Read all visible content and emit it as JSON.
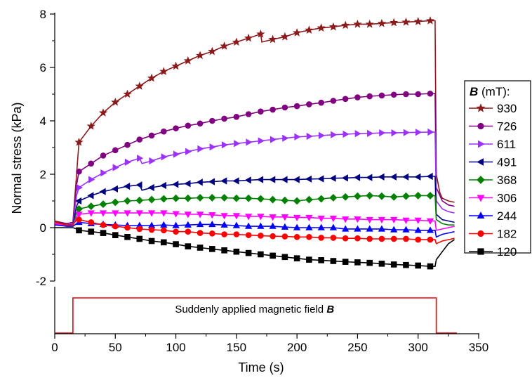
{
  "chart_data": {
    "type": "line",
    "xlabel": "Time (s)",
    "ylabel": "Normal stress (kPa)",
    "xlim": [
      0,
      350
    ],
    "ylim": [
      -2,
      8
    ],
    "xticks": [
      "0",
      "50",
      "100",
      "150",
      "200",
      "250",
      "300",
      "350"
    ],
    "yticks": [
      "-2",
      "0",
      "2",
      "4",
      "6",
      "8"
    ],
    "grid": false,
    "legend": {
      "title_symbol": "B",
      "title_unit": " (mT):",
      "placement": "right"
    },
    "annotation": {
      "text_plain": "Suddenly applied magnetic field ",
      "text_symbol": "B",
      "field_on": 15,
      "field_off": 315,
      "line_color": "#e8000b"
    },
    "series": [
      {
        "name": "930",
        "color": "#8b1a1a",
        "marker": "star",
        "x": [
          0,
          5,
          10,
          15,
          18,
          20,
          30,
          40,
          50,
          60,
          70,
          80,
          90,
          100,
          110,
          120,
          130,
          140,
          150,
          160,
          170,
          171,
          180,
          190,
          200,
          210,
          220,
          230,
          240,
          250,
          260,
          270,
          280,
          290,
          300,
          310,
          314,
          315,
          318,
          320,
          325,
          330
        ],
        "y": [
          0.25,
          0.2,
          0.15,
          0.2,
          2.0,
          3.2,
          3.8,
          4.3,
          4.7,
          5.0,
          5.3,
          5.6,
          5.85,
          6.05,
          6.25,
          6.45,
          6.6,
          6.8,
          6.95,
          7.1,
          7.25,
          6.95,
          7.05,
          7.15,
          7.3,
          7.4,
          7.48,
          7.52,
          7.58,
          7.62,
          7.62,
          7.65,
          7.68,
          7.7,
          7.72,
          7.75,
          7.75,
          2.0,
          1.3,
          1.1,
          1.0,
          0.95
        ]
      },
      {
        "name": "726",
        "color": "#800080",
        "marker": "circle",
        "x": [
          0,
          5,
          10,
          15,
          18,
          20,
          30,
          40,
          50,
          60,
          70,
          80,
          90,
          100,
          110,
          120,
          130,
          140,
          150,
          160,
          170,
          180,
          190,
          200,
          210,
          220,
          230,
          240,
          250,
          260,
          270,
          280,
          290,
          300,
          310,
          314,
          315,
          320,
          325,
          330
        ],
        "y": [
          0.2,
          0.18,
          0.15,
          0.2,
          1.6,
          2.1,
          2.4,
          2.7,
          2.9,
          3.1,
          3.3,
          3.45,
          3.6,
          3.72,
          3.82,
          3.9,
          4.0,
          4.08,
          4.15,
          4.25,
          4.35,
          4.42,
          4.5,
          4.55,
          4.62,
          4.68,
          4.75,
          4.82,
          4.88,
          4.92,
          4.95,
          4.98,
          5.0,
          5.0,
          5.02,
          5.02,
          1.5,
          1.0,
          0.85,
          0.8
        ]
      },
      {
        "name": "611",
        "color": "#9b30ff",
        "marker": "tri-right",
        "x": [
          0,
          5,
          10,
          15,
          18,
          20,
          30,
          40,
          50,
          60,
          70,
          72,
          80,
          90,
          100,
          110,
          120,
          130,
          140,
          150,
          160,
          170,
          180,
          190,
          200,
          210,
          220,
          230,
          240,
          250,
          260,
          270,
          280,
          290,
          300,
          310,
          314,
          315,
          320,
          325,
          330
        ],
        "y": [
          0.2,
          0.15,
          0.1,
          0.15,
          1.2,
          1.5,
          1.8,
          2.05,
          2.25,
          2.45,
          2.6,
          2.4,
          2.5,
          2.65,
          2.75,
          2.85,
          2.95,
          3.02,
          3.1,
          3.15,
          3.2,
          3.25,
          3.3,
          3.35,
          3.4,
          3.42,
          3.45,
          3.48,
          3.5,
          3.52,
          3.53,
          3.55,
          3.55,
          3.56,
          3.57,
          3.58,
          3.58,
          1.0,
          0.7,
          0.6,
          0.55
        ]
      },
      {
        "name": "491",
        "color": "#000080",
        "marker": "tri-left",
        "x": [
          0,
          5,
          10,
          15,
          18,
          20,
          30,
          40,
          50,
          60,
          70,
          72,
          80,
          90,
          100,
          110,
          120,
          130,
          140,
          150,
          160,
          170,
          180,
          190,
          200,
          210,
          220,
          230,
          240,
          250,
          260,
          270,
          280,
          290,
          300,
          310,
          314,
          315,
          320,
          325,
          330
        ],
        "y": [
          0.2,
          0.15,
          0.1,
          0.1,
          0.8,
          1.0,
          1.2,
          1.35,
          1.45,
          1.55,
          1.6,
          1.4,
          1.5,
          1.58,
          1.62,
          1.65,
          1.7,
          1.72,
          1.75,
          1.75,
          1.78,
          1.8,
          1.8,
          1.8,
          1.8,
          1.82,
          1.83,
          1.85,
          1.86,
          1.88,
          1.88,
          1.9,
          1.9,
          1.9,
          1.9,
          1.92,
          1.92,
          0.5,
          0.3,
          0.25,
          0.2
        ]
      },
      {
        "name": "368",
        "color": "#008000",
        "marker": "diamond",
        "x": [
          0,
          5,
          10,
          15,
          18,
          20,
          30,
          40,
          50,
          60,
          70,
          80,
          90,
          100,
          110,
          120,
          130,
          140,
          150,
          160,
          170,
          180,
          190,
          200,
          210,
          220,
          230,
          240,
          250,
          260,
          270,
          280,
          290,
          300,
          310,
          314,
          315,
          320,
          325,
          330
        ],
        "y": [
          0.2,
          0.15,
          0.1,
          0.1,
          0.55,
          0.7,
          0.8,
          0.88,
          0.95,
          1.0,
          1.02,
          1.05,
          1.08,
          1.1,
          1.1,
          1.12,
          1.12,
          1.12,
          1.1,
          1.1,
          1.08,
          1.05,
          1.02,
          1.0,
          1.05,
          1.08,
          1.12,
          1.15,
          1.18,
          1.2,
          1.18,
          1.15,
          1.18,
          1.2,
          1.2,
          1.2,
          0.3,
          0.15,
          0.1,
          0.1
        ]
      },
      {
        "name": "306",
        "color": "#ff00ff",
        "marker": "tri-down",
        "x": [
          0,
          5,
          10,
          15,
          18,
          20,
          30,
          40,
          50,
          60,
          70,
          80,
          90,
          100,
          110,
          120,
          130,
          140,
          150,
          160,
          170,
          180,
          190,
          200,
          210,
          220,
          230,
          240,
          250,
          260,
          270,
          280,
          290,
          300,
          310,
          314,
          315,
          320,
          325,
          330
        ],
        "y": [
          0.15,
          0.1,
          0.05,
          0.1,
          0.4,
          0.5,
          0.55,
          0.55,
          0.55,
          0.55,
          0.55,
          0.55,
          0.55,
          0.52,
          0.5,
          0.5,
          0.48,
          0.45,
          0.45,
          0.42,
          0.42,
          0.4,
          0.4,
          0.38,
          0.38,
          0.35,
          0.35,
          0.32,
          0.32,
          0.3,
          0.3,
          0.3,
          0.28,
          0.28,
          0.25,
          0.25,
          -0.1,
          -0.05,
          0.0,
          0.05
        ]
      },
      {
        "name": "244",
        "color": "#0000ff",
        "marker": "tri-up",
        "x": [
          0,
          5,
          10,
          15,
          18,
          20,
          30,
          40,
          50,
          60,
          70,
          80,
          90,
          100,
          110,
          120,
          130,
          140,
          150,
          160,
          170,
          180,
          190,
          200,
          210,
          220,
          230,
          240,
          250,
          260,
          270,
          280,
          290,
          300,
          310,
          314,
          315,
          320,
          325,
          330
        ],
        "y": [
          0.1,
          0.08,
          0.05,
          0.05,
          0.15,
          0.2,
          0.15,
          0.12,
          0.1,
          0.08,
          0.08,
          0.08,
          0.1,
          0.08,
          0.1,
          0.12,
          0.12,
          0.1,
          0.08,
          0.05,
          0.05,
          0.05,
          0.02,
          0.0,
          0.0,
          0.0,
          0.0,
          -0.05,
          -0.05,
          -0.05,
          -0.05,
          -0.08,
          -0.08,
          -0.1,
          -0.1,
          -0.1,
          -0.35,
          -0.25,
          -0.2,
          -0.15
        ]
      },
      {
        "name": "182",
        "color": "#ff0000",
        "marker": "circle",
        "x": [
          0,
          5,
          10,
          15,
          18,
          20,
          30,
          40,
          50,
          60,
          70,
          80,
          90,
          100,
          110,
          120,
          130,
          140,
          150,
          160,
          170,
          180,
          190,
          200,
          210,
          220,
          230,
          240,
          250,
          260,
          270,
          280,
          290,
          300,
          310,
          314,
          315,
          320,
          325,
          330
        ],
        "y": [
          0.2,
          0.15,
          0.1,
          0.1,
          0.3,
          0.3,
          0.2,
          0.1,
          0.05,
          0.0,
          -0.05,
          -0.08,
          -0.1,
          -0.15,
          -0.15,
          -0.2,
          -0.22,
          -0.25,
          -0.25,
          -0.28,
          -0.3,
          -0.32,
          -0.33,
          -0.35,
          -0.35,
          -0.38,
          -0.38,
          -0.4,
          -0.4,
          -0.42,
          -0.42,
          -0.42,
          -0.42,
          -0.45,
          -0.45,
          -0.45,
          -0.6,
          -0.5,
          -0.45,
          -0.4
        ]
      },
      {
        "name": "120",
        "color": "#000000",
        "marker": "square",
        "x": [
          0,
          5,
          10,
          15,
          18,
          20,
          30,
          40,
          50,
          60,
          70,
          80,
          90,
          100,
          110,
          120,
          130,
          140,
          150,
          160,
          170,
          180,
          190,
          200,
          210,
          220,
          230,
          240,
          250,
          260,
          270,
          280,
          290,
          300,
          310,
          314,
          315,
          320,
          325,
          330
        ],
        "y": [
          0.0,
          0.0,
          0.0,
          0.0,
          -0.05,
          -0.1,
          -0.15,
          -0.2,
          -0.28,
          -0.35,
          -0.42,
          -0.5,
          -0.55,
          -0.62,
          -0.7,
          -0.75,
          -0.8,
          -0.85,
          -0.9,
          -0.95,
          -1.0,
          -1.05,
          -1.1,
          -1.15,
          -1.2,
          -1.22,
          -1.25,
          -1.28,
          -1.3,
          -1.32,
          -1.35,
          -1.38,
          -1.4,
          -1.42,
          -1.45,
          -1.45,
          -1.2,
          -0.9,
          -0.6,
          -0.45
        ]
      }
    ]
  }
}
